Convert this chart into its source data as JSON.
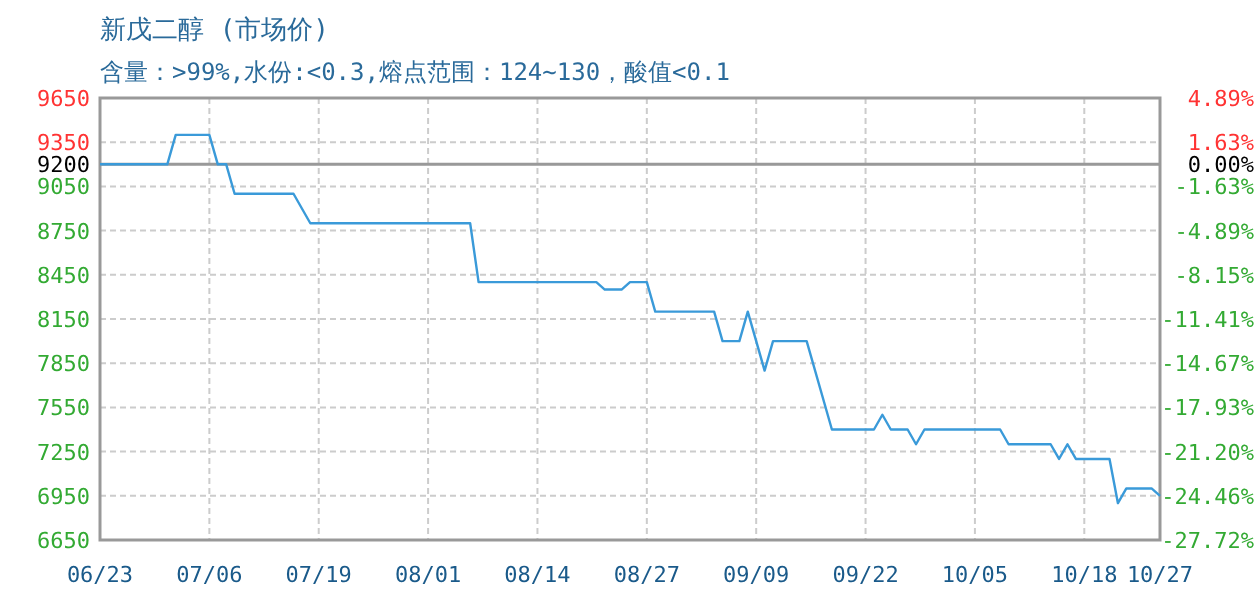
{
  "chart_data": {
    "type": "line",
    "title": "新戊二醇 (市场价)",
    "subtitle": "含量：>99%,水份:<0.3,熔点范围：124~130，酸值<0.1",
    "x": [
      "--06-23",
      "--07-01",
      "--07-02",
      "--07-06",
      "--07-07",
      "--07-08",
      "--07-09",
      "--07-16",
      "--07-18",
      "--08-06",
      "--08-07",
      "--08-21",
      "--08-22",
      "--08-24",
      "--08-25",
      "--08-27",
      "--08-28",
      "--09-04",
      "--09-05",
      "--09-07",
      "--09-08",
      "--09-10",
      "--09-11",
      "--09-15",
      "--09-18",
      "--09-23",
      "--09-24",
      "--09-25",
      "--09-27",
      "--09-28",
      "--09-29",
      "--10-08",
      "--10-09",
      "--10-14",
      "--10-15",
      "--10-16",
      "--10-17",
      "--10-21",
      "--10-22",
      "--10-23",
      "--10-26",
      "--10-27"
    ],
    "series": [
      {
        "color": "#3a9ad9",
        "values": [
          9200,
          9200,
          9400,
          9400,
          9200,
          9200,
          9000,
          9000,
          8800,
          8800,
          8400,
          8400,
          8350,
          8350,
          8400,
          8400,
          8200,
          8200,
          8000,
          8000,
          8200,
          7800,
          8000,
          8000,
          7400,
          7400,
          7500,
          7400,
          7400,
          7300,
          7400,
          7400,
          7300,
          7300,
          7200,
          7300,
          7200,
          7200,
          6900,
          7000,
          7000,
          6950
        ]
      }
    ],
    "xlim": [
      "--06-23",
      "--10-27"
    ],
    "xticks": [
      {
        "value": "--06-23",
        "label": "06/23"
      },
      {
        "value": "--07-06",
        "label": "07/06"
      },
      {
        "value": "--07-19",
        "label": "07/19"
      },
      {
        "value": "--08-01",
        "label": "08/01"
      },
      {
        "value": "--08-14",
        "label": "08/14"
      },
      {
        "value": "--08-27",
        "label": "08/27"
      },
      {
        "value": "--09-09",
        "label": "09/09"
      },
      {
        "value": "--09-22",
        "label": "09/22"
      },
      {
        "value": "--10-05",
        "label": "10/05"
      },
      {
        "value": "--10-18",
        "label": "10/18"
      },
      {
        "value": "--10-27",
        "label": "10/27"
      }
    ],
    "ylim": [
      6650,
      9650
    ],
    "yticks": [
      9650,
      9350,
      9200,
      9050,
      8750,
      8450,
      8150,
      7850,
      7550,
      7250,
      6950,
      6650
    ],
    "y2lim": [
      -27.72,
      4.89
    ],
    "y2ticks": [
      {
        "value": 4.89,
        "label": "4.89%"
      },
      {
        "value": 1.63,
        "label": "1.63%"
      },
      {
        "value": 0,
        "label": "0.00%"
      },
      {
        "value": -1.63,
        "label": "-1.63%"
      },
      {
        "value": -4.89,
        "label": "-4.89%"
      },
      {
        "value": -8.15,
        "label": "-8.15%"
      },
      {
        "value": -11.41,
        "label": "-11.41%"
      },
      {
        "value": -14.67,
        "label": "-14.67%"
      },
      {
        "value": -17.93,
        "label": "-17.93%"
      },
      {
        "value": -21.2,
        "label": "-21.20%"
      },
      {
        "value": -24.46,
        "label": "-24.46%"
      },
      {
        "value": -27.72,
        "label": "-27.72%"
      }
    ],
    "ref_lines": [
      {
        "axis": "y",
        "value": 9200,
        "color": "#999999"
      }
    ],
    "grid": true
  }
}
